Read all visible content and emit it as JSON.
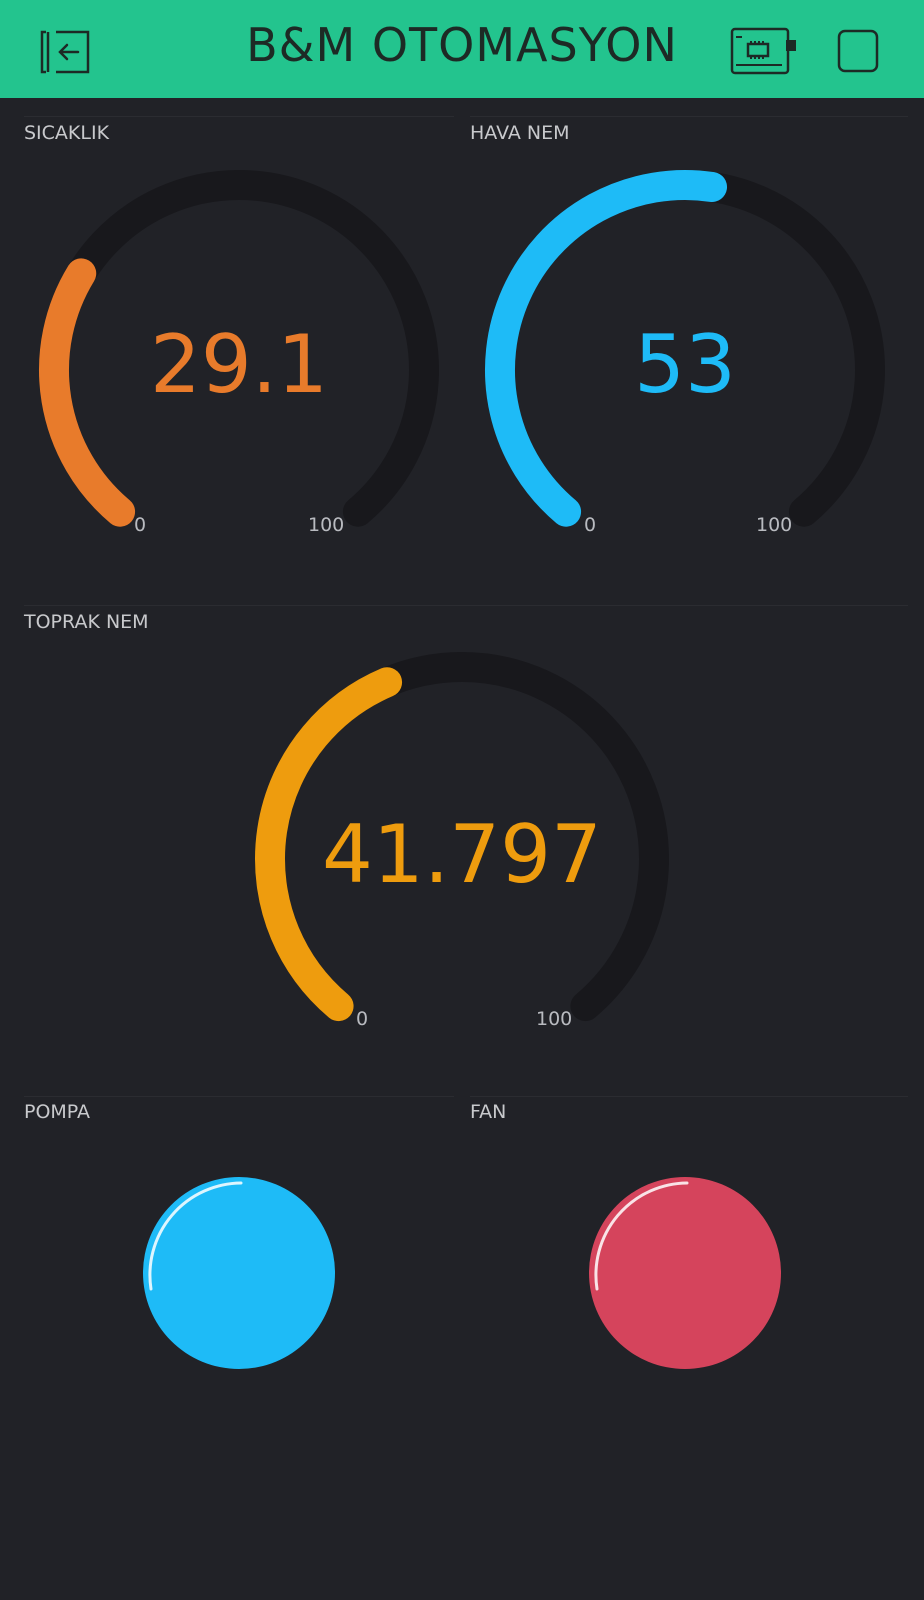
{
  "header": {
    "title": "B&M OTOMASYON",
    "color": "#23c48e"
  },
  "widgets": {
    "sicaklik": {
      "label": "SICAKLIK",
      "value": "29.1",
      "min": "0",
      "max": "100",
      "level": 29.1,
      "color": "#e87b2b"
    },
    "hava_nem": {
      "label": "HAVA NEM",
      "value": "53",
      "min": "0",
      "max": "100",
      "level": 53,
      "color": "#1ebbf7"
    },
    "toprak_nem": {
      "label": "TOPRAK NEM",
      "value": "41.797",
      "min": "0",
      "max": "100",
      "level": 41.797,
      "color": "#ee9c0e"
    },
    "pompa": {
      "label": "POMPA",
      "color": "#1ebbf7"
    },
    "fan": {
      "label": "FAN",
      "color": "#d5445c"
    }
  },
  "icons": [
    "exit-icon",
    "device-icon",
    "stop-icon"
  ]
}
